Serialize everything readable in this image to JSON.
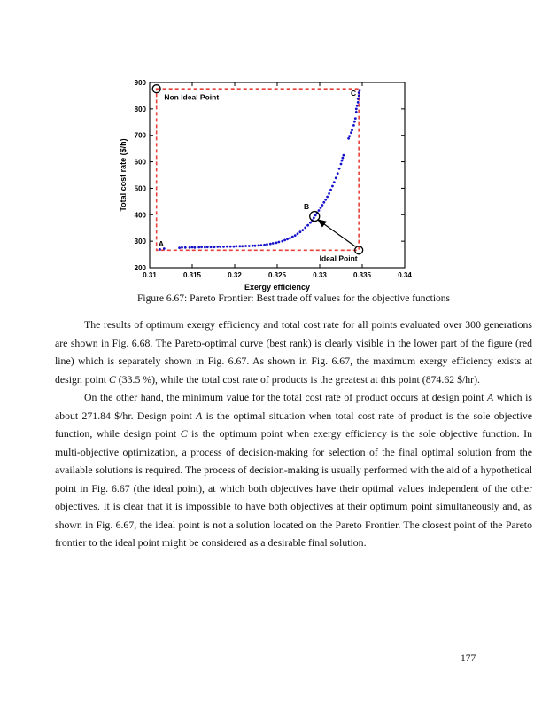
{
  "page": {
    "number": "177"
  },
  "figure": {
    "caption": "Figure 6.67: Pareto Frontier: Best trade off values for the objective functions"
  },
  "chart_data": {
    "type": "scatter",
    "xlabel": "Exergy efficiency",
    "ylabel": "Total cost rate ($/h)",
    "xlim": [
      0.31,
      0.34
    ],
    "ylim": [
      200,
      900
    ],
    "x_ticks": [
      {
        "v": 0.31,
        "label": "0.31"
      },
      {
        "v": 0.315,
        "label": "0.315"
      },
      {
        "v": 0.32,
        "label": "0.32"
      },
      {
        "v": 0.325,
        "label": "0.325"
      },
      {
        "v": 0.33,
        "label": "0.33"
      },
      {
        "v": 0.335,
        "label": "0.335"
      },
      {
        "v": 0.34,
        "label": "0.34"
      }
    ],
    "y_ticks": [
      {
        "v": 200,
        "label": "200"
      },
      {
        "v": 300,
        "label": "300"
      },
      {
        "v": 400,
        "label": "400"
      },
      {
        "v": 500,
        "label": "500"
      },
      {
        "v": 600,
        "label": "600"
      },
      {
        "v": 700,
        "label": "700"
      },
      {
        "v": 800,
        "label": "800"
      },
      {
        "v": 900,
        "label": "900"
      }
    ],
    "grid": false,
    "colors": {
      "points": "#1612c9",
      "dashed": "#e8403a",
      "axis": "#000000"
    },
    "ideal_rect": {
      "x_min": 0.3108,
      "x_max": 0.3346,
      "y_min": 266,
      "y_max": 876
    },
    "series": [
      {
        "name": "Pareto frontier points",
        "points": [
          [
            0.3112,
            269
          ],
          [
            0.3117,
            272
          ],
          [
            0.3135,
            275
          ],
          [
            0.3138,
            276
          ],
          [
            0.3142,
            276
          ],
          [
            0.3147,
            276
          ],
          [
            0.315,
            277
          ],
          [
            0.3153,
            276
          ],
          [
            0.3158,
            277
          ],
          [
            0.3161,
            278
          ],
          [
            0.3165,
            277
          ],
          [
            0.3168,
            278
          ],
          [
            0.3172,
            278
          ],
          [
            0.3176,
            278
          ],
          [
            0.318,
            279
          ],
          [
            0.3183,
            279
          ],
          [
            0.3187,
            279
          ],
          [
            0.3191,
            280
          ],
          [
            0.3195,
            280
          ],
          [
            0.3199,
            280
          ],
          [
            0.3202,
            281
          ],
          [
            0.3206,
            281
          ],
          [
            0.3209,
            281
          ],
          [
            0.3213,
            282
          ],
          [
            0.3217,
            282
          ],
          [
            0.3221,
            283
          ],
          [
            0.3224,
            283
          ],
          [
            0.3228,
            284
          ],
          [
            0.3231,
            285
          ],
          [
            0.3235,
            286
          ],
          [
            0.3238,
            288
          ],
          [
            0.3242,
            290
          ],
          [
            0.3245,
            292
          ],
          [
            0.3249,
            294
          ],
          [
            0.3252,
            297
          ],
          [
            0.3256,
            300
          ],
          [
            0.3259,
            304
          ],
          [
            0.3262,
            308
          ],
          [
            0.3265,
            312
          ],
          [
            0.3268,
            317
          ],
          [
            0.3271,
            322
          ],
          [
            0.3274,
            328
          ],
          [
            0.3277,
            335
          ],
          [
            0.328,
            342
          ],
          [
            0.3283,
            351
          ],
          [
            0.3286,
            360
          ],
          [
            0.3289,
            370
          ],
          [
            0.3291,
            379
          ],
          [
            0.3293,
            388
          ],
          [
            0.3295,
            398
          ],
          [
            0.3297,
            407
          ],
          [
            0.3299,
            416
          ],
          [
            0.3301,
            426
          ],
          [
            0.3303,
            436
          ],
          [
            0.3305,
            447
          ],
          [
            0.3307,
            457
          ],
          [
            0.3309,
            468
          ],
          [
            0.3311,
            480
          ],
          [
            0.3313,
            494
          ],
          [
            0.3315,
            508
          ],
          [
            0.3317,
            523
          ],
          [
            0.3319,
            539
          ],
          [
            0.3321,
            556
          ],
          [
            0.3323,
            574
          ],
          [
            0.3325,
            592
          ],
          [
            0.3326,
            605
          ],
          [
            0.3327,
            615
          ],
          [
            0.3328,
            625
          ],
          [
            0.3334,
            688
          ],
          [
            0.3335,
            697
          ],
          [
            0.3337,
            710
          ],
          [
            0.3338,
            720
          ],
          [
            0.334,
            738
          ],
          [
            0.3341,
            752
          ],
          [
            0.3342,
            764
          ],
          [
            0.3343,
            788
          ],
          [
            0.3343,
            800
          ],
          [
            0.3344,
            812
          ],
          [
            0.3345,
            825
          ],
          [
            0.3345,
            838
          ],
          [
            0.3346,
            850
          ],
          [
            0.3346,
            861
          ],
          [
            0.3347,
            871
          ]
        ]
      }
    ],
    "marker_circles": [
      {
        "id": "non-ideal-marker",
        "x": 0.3108,
        "y": 876,
        "r": 4.5
      },
      {
        "id": "ideal-marker",
        "x": 0.3346,
        "y": 266,
        "r": 4.5
      },
      {
        "id": "point-b-marker",
        "x": 0.3294,
        "y": 394,
        "r": 5.5
      }
    ],
    "arrow": {
      "x1": 0.3342,
      "y1": 280,
      "x2": 0.3298,
      "y2": 381
    },
    "annotations": [
      {
        "id": "non-ideal-label",
        "text": "Non Ideal Point",
        "x": 0.3117,
        "y": 845,
        "anchor": "start"
      },
      {
        "id": "ideal-label",
        "text": "Ideal Point",
        "x": 0.3322,
        "y": 236,
        "anchor": "middle"
      },
      {
        "id": "point-a-label",
        "text": "A",
        "x": 0.31135,
        "y": 290,
        "anchor": "middle"
      },
      {
        "id": "point-b-label",
        "text": "B",
        "x": 0.32844,
        "y": 431,
        "anchor": "middle"
      },
      {
        "id": "point-c-label",
        "text": "C",
        "x": 0.33396,
        "y": 860,
        "anchor": "middle"
      }
    ]
  },
  "body": {
    "paragraphs": [
      {
        "segments": [
          {
            "text": "The results of optimum exergy efficiency and total cost rate for all points evaluated over 300 generations are shown in Fig. 6.68. The Pareto-optimal curve (best rank) is clearly visible in the lower part of the figure (red line) which is separately shown in Fig. 6.67. As shown in Fig. 6.67, the maximum exergy efficiency exists at design point "
          },
          {
            "text": "C",
            "italic": true
          },
          {
            "text": " (33.5 %), while the total cost rate of products is the greatest at this point (874.62 $/hr)."
          }
        ]
      },
      {
        "segments": [
          {
            "text": "On the other hand, the minimum value for the total cost rate of product occurs at design point "
          },
          {
            "text": "A",
            "italic": true
          },
          {
            "text": " which is about 271.84 $/hr. Design point "
          },
          {
            "text": "A",
            "italic": true
          },
          {
            "text": " is the optimal situation when total cost rate of product is the sole objective function, while design point "
          },
          {
            "text": "C",
            "italic": true
          },
          {
            "text": " is the optimum point when exergy efficiency is the sole objective function. In multi-objective optimization, a process of decision-making for selection of the final optimal solution from the available solutions is required. The process of decision-making is usually performed with the aid of a hypothetical point in Fig. 6.67 (the ideal point), at which both objectives have their optimal values independent of the other objectives. It is clear that it is impossible to have both objectives at their optimum point simultaneously and, as shown in Fig. 6.67, the ideal point is not a solution located on the Pareto Frontier. The closest point of the Pareto frontier to the ideal point might be considered as a desirable final solution."
          }
        ]
      }
    ]
  }
}
